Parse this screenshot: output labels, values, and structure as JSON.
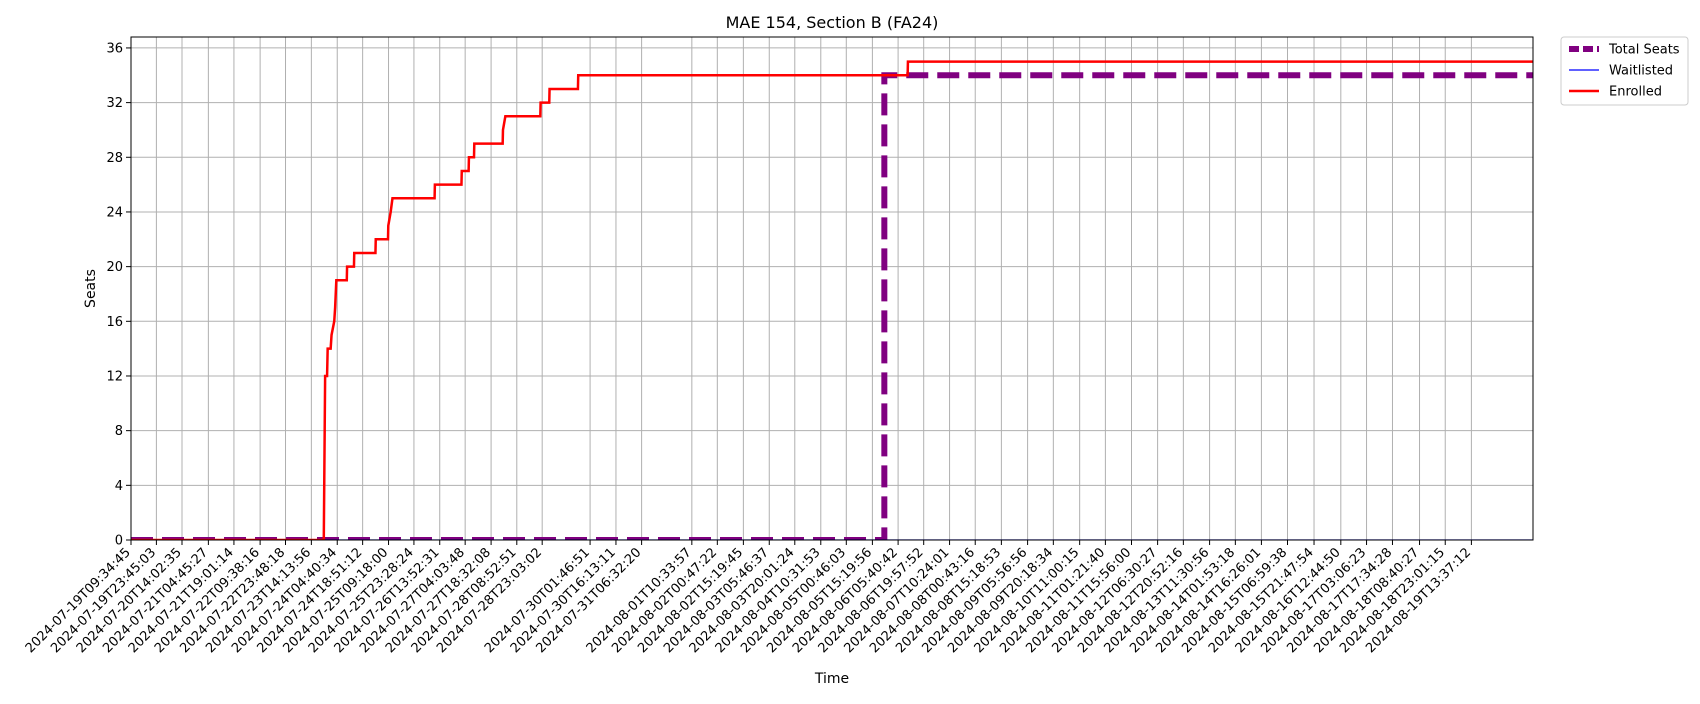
{
  "chart_data": {
    "type": "line",
    "title": "MAE 154, Section B (FA24)",
    "xlabel": "Time",
    "ylabel": "Seats",
    "ylim": [
      0,
      36.8
    ],
    "yticks": [
      0,
      4,
      8,
      12,
      16,
      20,
      24,
      28,
      32,
      36
    ],
    "grid": true,
    "legend_position": "outside-top-right",
    "x_range": [
      "2024-07-19T09:34:45",
      "2024-08-21T00:00:00"
    ],
    "x_tick_labels": [
      "2024-07-19T09:34:45",
      "2024-07-19T23:45:03",
      "2024-07-20T14:02:35",
      "2024-07-21T04:45:27",
      "2024-07-21T19:01:14",
      "2024-07-22T09:38:16",
      "2024-07-22T23:48:18",
      "2024-07-23T14:13:56",
      "2024-07-24T04:40:34",
      "2024-07-24T18:51:12",
      "2024-07-25T09:18:00",
      "2024-07-25T23:28:24",
      "2024-07-26T13:52:31",
      "2024-07-27T04:03:48",
      "2024-07-27T18:32:08",
      "2024-07-28T08:52:51",
      "2024-07-28T23:03:02",
      "2024-07-30T01:46:51",
      "2024-07-30T16:13:11",
      "2024-07-31T06:32:20",
      "2024-08-01T10:33:57",
      "2024-08-02T00:47:22",
      "2024-08-02T15:19:45",
      "2024-08-03T05:46:37",
      "2024-08-03T20:01:24",
      "2024-08-04T10:31:53",
      "2024-08-05T00:46:03",
      "2024-08-05T15:19:56",
      "2024-08-06T05:40:42",
      "2024-08-06T19:57:52",
      "2024-08-07T10:24:01",
      "2024-08-08T00:43:16",
      "2024-08-08T15:18:53",
      "2024-08-09T05:56:56",
      "2024-08-09T20:18:34",
      "2024-08-10T11:00:15",
      "2024-08-11T01:21:40",
      "2024-08-11T15:56:00",
      "2024-08-12T06:30:27",
      "2024-08-12T20:52:16",
      "2024-08-13T11:30:56",
      "2024-08-14T01:53:18",
      "2024-08-14T16:26:01",
      "2024-08-15T06:59:38",
      "2024-08-15T21:47:54",
      "2024-08-16T12:44:50",
      "2024-08-17T03:06:23",
      "2024-08-17T17:34:28",
      "2024-08-18T08:40:27",
      "2024-08-18T23:01:15",
      "2024-08-19T13:37:12"
    ],
    "series": [
      {
        "name": "Total Seats",
        "color": "#800080",
        "style": "dashed",
        "points": [
          [
            "2024-07-19T09:34:45",
            0
          ],
          [
            "2024-08-05T22:00:00",
            0
          ],
          [
            "2024-08-05T22:00:00",
            34
          ],
          [
            "2024-08-21T00:00:00",
            34
          ]
        ]
      },
      {
        "name": "Waitlisted",
        "color": "#0000ff",
        "style": "solid",
        "points": [
          [
            "2024-07-19T09:34:45",
            0
          ],
          [
            "2024-08-21T00:00:00",
            0
          ]
        ]
      },
      {
        "name": "Enrolled",
        "color": "#ff0000",
        "style": "solid",
        "points": [
          [
            "2024-07-19T09:34:45",
            0
          ],
          [
            "2024-07-23T21:10:00",
            0
          ],
          [
            "2024-07-23T21:25:00",
            4
          ],
          [
            "2024-07-23T21:40:00",
            8
          ],
          [
            "2024-07-23T21:55:00",
            12
          ],
          [
            "2024-07-23T23:00:00",
            12
          ],
          [
            "2024-07-23T23:20:00",
            14
          ],
          [
            "2024-07-24T01:00:00",
            14
          ],
          [
            "2024-07-24T01:30:00",
            15
          ],
          [
            "2024-07-24T03:00:00",
            16
          ],
          [
            "2024-07-24T03:30:00",
            17
          ],
          [
            "2024-07-24T04:10:00",
            19
          ],
          [
            "2024-07-24T10:00:00",
            19
          ],
          [
            "2024-07-24T10:10:00",
            20
          ],
          [
            "2024-07-24T14:00:00",
            20
          ],
          [
            "2024-07-24T14:10:00",
            21
          ],
          [
            "2024-07-25T02:00:00",
            21
          ],
          [
            "2024-07-25T02:10:00",
            22
          ],
          [
            "2024-07-25T09:00:00",
            22
          ],
          [
            "2024-07-25T09:10:00",
            23
          ],
          [
            "2024-07-25T10:30:00",
            24
          ],
          [
            "2024-07-25T11:30:00",
            25
          ],
          [
            "2024-07-26T11:00:00",
            25
          ],
          [
            "2024-07-26T11:10:00",
            26
          ],
          [
            "2024-07-27T02:00:00",
            26
          ],
          [
            "2024-07-27T02:10:00",
            27
          ],
          [
            "2024-07-27T06:00:00",
            27
          ],
          [
            "2024-07-27T06:10:00",
            28
          ],
          [
            "2024-07-27T09:00:00",
            28
          ],
          [
            "2024-07-27T09:10:00",
            29
          ],
          [
            "2024-07-28T01:00:00",
            29
          ],
          [
            "2024-07-28T01:10:00",
            30
          ],
          [
            "2024-07-28T02:30:00",
            31
          ],
          [
            "2024-07-28T22:00:00",
            31
          ],
          [
            "2024-07-28T22:10:00",
            32
          ],
          [
            "2024-07-29T03:00:00",
            32
          ],
          [
            "2024-07-29T03:10:00",
            33
          ],
          [
            "2024-07-29T19:00:00",
            33
          ],
          [
            "2024-07-29T19:10:00",
            34
          ],
          [
            "2024-08-06T11:00:00",
            34
          ],
          [
            "2024-08-06T11:10:00",
            35
          ],
          [
            "2024-08-21T00:00:00",
            35
          ]
        ]
      }
    ]
  }
}
